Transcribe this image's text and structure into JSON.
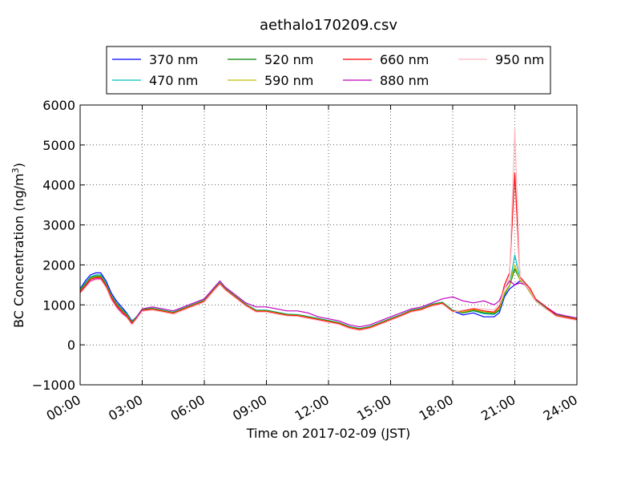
{
  "chart_data": {
    "type": "line",
    "title": "aethalo170209.csv",
    "xlabel": "Time on 2017-02-09 (JST)",
    "ylabel": "BC Concentration (ng/m³)",
    "ylabel_main": "BC Concentration (ng/m",
    "ylabel_sup": "3",
    "ylabel_end": ")",
    "xlim": [
      "00:00",
      "24:00"
    ],
    "ylim": [
      -1000,
      6000
    ],
    "x_ticks": [
      "00:00",
      "03:00",
      "06:00",
      "09:00",
      "12:00",
      "15:00",
      "18:00",
      "21:00",
      "24:00"
    ],
    "y_ticks": [
      "−1000",
      "0",
      "1000",
      "2000",
      "3000",
      "4000",
      "5000",
      "6000"
    ],
    "grid": true,
    "legend_position": "top-center",
    "x_hours": [
      0,
      0.25,
      0.5,
      0.75,
      1,
      1.25,
      1.5,
      1.75,
      2,
      2.25,
      2.5,
      2.75,
      3,
      3.5,
      4,
      4.5,
      5,
      5.5,
      6,
      6.5,
      6.75,
      7,
      7.5,
      8,
      8.5,
      9,
      9.5,
      10,
      10.5,
      11,
      11.5,
      12,
      12.5,
      13,
      13.5,
      14,
      14.5,
      15,
      15.5,
      16,
      16.5,
      17,
      17.5,
      18,
      18.5,
      19,
      19.5,
      20,
      20.25,
      20.5,
      20.75,
      21,
      21.25,
      21.5,
      21.75,
      22,
      22.5,
      23,
      23.5,
      24
    ],
    "series": [
      {
        "name": "370 nm",
        "color": "#0000ff",
        "values": [
          1400,
          1600,
          1750,
          1800,
          1800,
          1600,
          1300,
          1100,
          950,
          800,
          600,
          700,
          850,
          900,
          850,
          800,
          900,
          1000,
          1100,
          1400,
          1550,
          1400,
          1200,
          1000,
          850,
          850,
          800,
          750,
          750,
          700,
          650,
          600,
          550,
          450,
          400,
          450,
          550,
          650,
          750,
          850,
          900,
          1000,
          1050,
          850,
          750,
          800,
          700,
          700,
          800,
          1200,
          1400,
          1500,
          1600,
          1500,
          1300,
          1100,
          900,
          750,
          700,
          650
        ]
      },
      {
        "name": "470 nm",
        "color": "#00bfbf",
        "values": [
          1380,
          1550,
          1700,
          1750,
          1750,
          1550,
          1250,
          1050,
          900,
          780,
          580,
          720,
          900,
          920,
          870,
          820,
          920,
          1020,
          1120,
          1420,
          1560,
          1420,
          1220,
          1020,
          870,
          870,
          820,
          770,
          760,
          710,
          660,
          610,
          560,
          460,
          410,
          460,
          560,
          660,
          760,
          870,
          920,
          1020,
          1070,
          870,
          800,
          850,
          780,
          760,
          850,
          1250,
          1500,
          2250,
          1650,
          1520,
          1320,
          1120,
          920,
          760,
          710,
          660
        ]
      },
      {
        "name": "520 nm",
        "color": "#008000",
        "values": [
          1360,
          1520,
          1680,
          1720,
          1720,
          1520,
          1230,
          1030,
          880,
          760,
          560,
          700,
          880,
          910,
          860,
          810,
          910,
          1010,
          1110,
          1410,
          1550,
          1410,
          1210,
          1010,
          860,
          860,
          810,
          760,
          750,
          700,
          650,
          600,
          550,
          450,
          400,
          450,
          550,
          650,
          750,
          860,
          910,
          1010,
          1060,
          860,
          800,
          860,
          800,
          780,
          870,
          1270,
          1480,
          1900,
          1620,
          1510,
          1310,
          1110,
          910,
          750,
          700,
          650
        ]
      },
      {
        "name": "590 nm",
        "color": "#bfbf00",
        "values": [
          1340,
          1500,
          1660,
          1700,
          1700,
          1500,
          1210,
          1010,
          860,
          740,
          550,
          690,
          870,
          900,
          850,
          800,
          900,
          1000,
          1100,
          1400,
          1540,
          1400,
          1200,
          1000,
          850,
          850,
          800,
          750,
          740,
          690,
          640,
          590,
          540,
          440,
          390,
          440,
          540,
          640,
          740,
          850,
          900,
          1000,
          1050,
          850,
          820,
          880,
          830,
          800,
          900,
          1300,
          1500,
          2000,
          1600,
          1500,
          1300,
          1100,
          900,
          740,
          690,
          640
        ]
      },
      {
        "name": "660 nm",
        "color": "#ff0000",
        "values": [
          1320,
          1480,
          1640,
          1680,
          1680,
          1480,
          1190,
          990,
          840,
          720,
          540,
          680,
          860,
          890,
          840,
          790,
          890,
          990,
          1090,
          1390,
          1530,
          1390,
          1190,
          990,
          840,
          840,
          790,
          740,
          730,
          680,
          630,
          580,
          530,
          430,
          380,
          430,
          530,
          630,
          730,
          840,
          890,
          990,
          1040,
          840,
          850,
          900,
          850,
          820,
          950,
          1500,
          1800,
          4300,
          1700,
          1550,
          1400,
          1150,
          950,
          730,
          680,
          630
        ]
      },
      {
        "name": "880 nm",
        "color": "#bf00bf",
        "values": [
          1300,
          1450,
          1600,
          1650,
          1650,
          1450,
          1150,
          950,
          800,
          700,
          520,
          700,
          900,
          950,
          900,
          850,
          950,
          1050,
          1150,
          1450,
          1600,
          1450,
          1250,
          1050,
          950,
          950,
          900,
          850,
          850,
          800,
          700,
          650,
          600,
          500,
          450,
          500,
          600,
          700,
          800,
          900,
          950,
          1050,
          1150,
          1200,
          1100,
          1050,
          1100,
          1000,
          1100,
          1400,
          1600,
          1500,
          1550,
          1500,
          1350,
          1150,
          950,
          780,
          720,
          670
        ]
      },
      {
        "name": "950 nm",
        "color": "#ffb6c1",
        "values": [
          1280,
          1430,
          1580,
          1630,
          1630,
          1430,
          1130,
          930,
          780,
          680,
          500,
          660,
          840,
          870,
          820,
          770,
          870,
          970,
          1070,
          1370,
          1510,
          1370,
          1170,
          970,
          820,
          820,
          770,
          720,
          710,
          660,
          610,
          560,
          510,
          410,
          360,
          410,
          510,
          610,
          710,
          820,
          870,
          970,
          1020,
          820,
          870,
          920,
          900,
          870,
          1000,
          1400,
          1700,
          5400,
          1650,
          1500,
          1350,
          1100,
          900,
          710,
          660,
          610
        ]
      }
    ]
  }
}
